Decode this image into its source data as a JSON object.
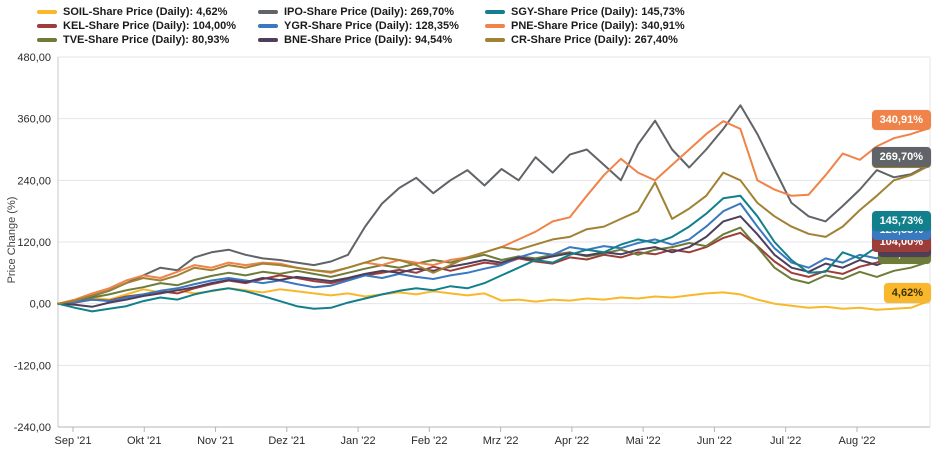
{
  "chart_data": {
    "type": "line",
    "title": "",
    "ylabel": "Price Change (%)",
    "xlabel": "",
    "ylim": [
      -240,
      480
    ],
    "grid": true,
    "legend_position": "top",
    "y_ticks": [
      {
        "value": 480,
        "label": "480,00"
      },
      {
        "value": 360,
        "label": "360,00"
      },
      {
        "value": 240,
        "label": "240,00"
      },
      {
        "value": 120,
        "label": "120,00"
      },
      {
        "value": 0,
        "label": "0,00"
      },
      {
        "value": -120,
        "label": "-120,00"
      },
      {
        "value": -240,
        "label": "-240,00"
      }
    ],
    "x_tick_labels": [
      "Sep '21",
      "Okt '21",
      "Nov '21",
      "Dez '21",
      "Jan '22",
      "Feb '22",
      "Mrz '22",
      "Apr '22",
      "Mai '22",
      "Jun '22",
      "Jul '22",
      "Aug '22"
    ],
    "series": [
      {
        "id": "SOIL",
        "legend_label": "SOIL-Share Price (Daily): 4,62%",
        "end_label": "4,62%",
        "color": "#F9B82B",
        "badge_text_color": "#3d3200",
        "values": [
          0,
          4,
          12,
          8,
          18,
          28,
          22,
          26,
          20,
          24,
          30,
          26,
          22,
          28,
          24,
          20,
          16,
          20,
          14,
          18,
          22,
          18,
          24,
          20,
          16,
          20,
          6,
          8,
          4,
          8,
          6,
          10,
          8,
          12,
          10,
          14,
          12,
          16,
          20,
          22,
          18,
          8,
          0,
          -4,
          -8,
          -6,
          -10,
          -8,
          -12,
          -10,
          -8,
          4.62
        ]
      },
      {
        "id": "KEL",
        "legend_label": "KEL-Share Price (Daily): 104,00%",
        "end_label": "104,00%",
        "color": "#9D3D39",
        "badge_text_color": "#ffffff",
        "values": [
          0,
          2,
          8,
          6,
          14,
          18,
          24,
          20,
          30,
          38,
          45,
          40,
          48,
          55,
          50,
          44,
          40,
          48,
          55,
          60,
          66,
          60,
          72,
          64,
          72,
          80,
          76,
          88,
          82,
          78,
          90,
          86,
          95,
          90,
          100,
          96,
          105,
          100,
          110,
          128,
          138,
          112,
          82,
          60,
          52,
          64,
          58,
          72,
          80,
          92,
          85,
          104
        ]
      },
      {
        "id": "TVE",
        "legend_label": "TVE-Share Price (Daily): 80,93%",
        "end_label": "80,93%",
        "color": "#6E7C39",
        "badge_text_color": "#ffffff",
        "values": [
          0,
          5,
          12,
          18,
          26,
          32,
          40,
          36,
          46,
          54,
          60,
          55,
          62,
          58,
          64,
          58,
          52,
          60,
          68,
          75,
          70,
          78,
          85,
          80,
          88,
          95,
          85,
          92,
          88,
          95,
          100,
          92,
          98,
          105,
          95,
          105,
          110,
          118,
          112,
          135,
          148,
          110,
          70,
          48,
          40,
          55,
          48,
          62,
          52,
          64,
          70,
          80.93
        ]
      },
      {
        "id": "IPO",
        "legend_label": "IPO-Share Price (Daily): 269,70%",
        "end_label": "269,70%",
        "color": "#606468",
        "badge_text_color": "#ffffff",
        "values": [
          0,
          5,
          15,
          25,
          40,
          55,
          70,
          65,
          90,
          100,
          105,
          95,
          88,
          85,
          80,
          75,
          82,
          95,
          150,
          195,
          225,
          245,
          215,
          240,
          260,
          230,
          262,
          240,
          285,
          255,
          290,
          300,
          270,
          240,
          310,
          356,
          300,
          265,
          300,
          340,
          386,
          330,
          262,
          196,
          170,
          160,
          190,
          222,
          260,
          246,
          252,
          269.7
        ]
      },
      {
        "id": "YGR",
        "legend_label": "YGR-Share Price (Daily): 128,35%",
        "end_label": "128,35%",
        "color": "#3A78BF",
        "badge_text_color": "#ffffff",
        "values": [
          0,
          3,
          8,
          5,
          12,
          18,
          25,
          30,
          38,
          45,
          50,
          45,
          40,
          45,
          38,
          32,
          35,
          45,
          55,
          50,
          58,
          52,
          48,
          55,
          60,
          68,
          75,
          90,
          100,
          95,
          110,
          105,
          112,
          108,
          118,
          125,
          115,
          125,
          150,
          180,
          195,
          150,
          108,
          80,
          70,
          88,
          80,
          95,
          88,
          105,
          98,
          128.35
        ]
      },
      {
        "id": "BNE",
        "legend_label": "BNE-Share Price (Daily): 94,54%",
        "end_label": "94,54%",
        "color": "#4E3E5B",
        "badge_text_color": "#ffffff",
        "values": [
          0,
          -2,
          -6,
          2,
          8,
          15,
          20,
          26,
          32,
          40,
          46,
          42,
          50,
          46,
          52,
          48,
          44,
          50,
          58,
          64,
          60,
          68,
          64,
          72,
          78,
          85,
          80,
          90,
          85,
          92,
          98,
          94,
          100,
          96,
          105,
          110,
          100,
          110,
          130,
          160,
          170,
          135,
          95,
          70,
          62,
          78,
          70,
          85,
          75,
          88,
          80,
          94.54
        ]
      },
      {
        "id": "SGY",
        "legend_label": "SGY-Share Price (Daily): 145,73%",
        "end_label": "145,73%",
        "color": "#12808C",
        "badge_text_color": "#ffffff",
        "values": [
          0,
          -8,
          -15,
          -10,
          -5,
          5,
          12,
          8,
          18,
          25,
          30,
          24,
          15,
          5,
          -5,
          -10,
          -8,
          2,
          10,
          18,
          25,
          30,
          26,
          34,
          30,
          40,
          55,
          70,
          85,
          80,
          95,
          105,
          100,
          115,
          125,
          118,
          130,
          150,
          175,
          205,
          210,
          170,
          120,
          85,
          60,
          62,
          100,
          88,
          110,
          96,
          125,
          145.73
        ]
      },
      {
        "id": "PNE",
        "legend_label": "PNE-Share Price (Daily): 340,91%",
        "end_label": "340,91%",
        "color": "#EF8349",
        "badge_text_color": "#ffffff",
        "values": [
          0,
          8,
          20,
          30,
          45,
          55,
          50,
          62,
          75,
          70,
          80,
          75,
          80,
          78,
          70,
          65,
          60,
          70,
          80,
          75,
          85,
          80,
          75,
          85,
          90,
          100,
          110,
          125,
          140,
          160,
          168,
          210,
          250,
          282,
          255,
          240,
          270,
          300,
          330,
          355,
          340,
          240,
          222,
          210,
          212,
          250,
          292,
          280,
          306,
          322,
          330,
          340.91
        ]
      },
      {
        "id": "CR",
        "legend_label": "CR-Share Price (Daily): 267,40%",
        "end_label": "267,40%",
        "color": "#A18133",
        "badge_text_color": "#ffffff",
        "values": [
          0,
          6,
          16,
          26,
          40,
          50,
          45,
          55,
          70,
          65,
          75,
          70,
          78,
          75,
          70,
          65,
          62,
          70,
          80,
          90,
          85,
          75,
          60,
          75,
          90,
          100,
          110,
          105,
          115,
          125,
          130,
          145,
          150,
          165,
          180,
          236,
          165,
          185,
          210,
          255,
          240,
          196,
          170,
          150,
          136,
          130,
          150,
          182,
          210,
          240,
          250,
          267.4
        ]
      }
    ],
    "colors": {
      "grid": "#e4e4e8",
      "axis_line": "#c8c8d0",
      "bottom_axis": "#b4b4bc",
      "tick_text": "#2b2b2b"
    }
  }
}
